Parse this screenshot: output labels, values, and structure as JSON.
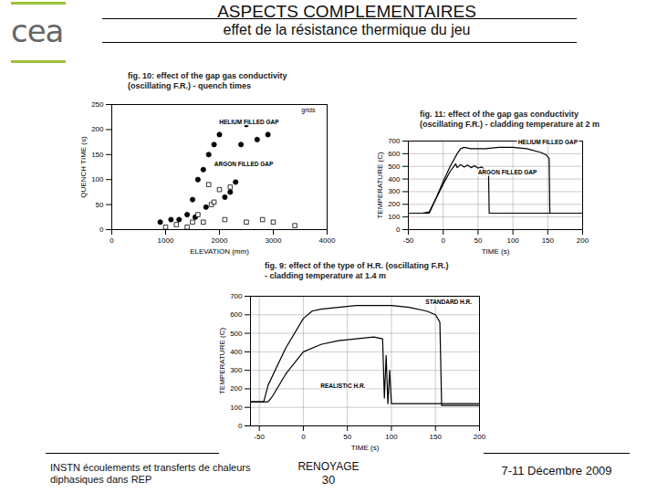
{
  "slide": {
    "logo": "cea",
    "title": "ASPECTS COMPLEMENTAIRES",
    "subtitle": "effet de la résistance thermique du jeu",
    "footer_left": "INSTN écoulements et transferts de chaleurs diphasiques dans REP",
    "footer_center": "RENOYAGE",
    "page": "30",
    "footer_right": "7-11 Décembre 2009"
  },
  "chart_data": [
    {
      "type": "scatter",
      "title": "fig. 10: effect of the gap gas conductivity",
      "subtitle": "(oscillating F.R.) - quench times",
      "x_label": "ELEVATION (mm)",
      "y_label": "QUENCH TIME (s)",
      "xlim": [
        0,
        4000
      ],
      "xticks": [
        0,
        1000,
        2000,
        3000,
        4000
      ],
      "ylim": [
        0,
        250
      ],
      "yticks": [
        0,
        50,
        100,
        150,
        200,
        250
      ],
      "grid": false,
      "annotations": [
        {
          "text": "grids",
          "x": 3650,
          "y": 238
        }
      ],
      "series": [
        {
          "name": "HELIUM FILLED GAP",
          "color": "#000000",
          "marker": "filled_circle",
          "label_x": 2550,
          "label_y": 215,
          "x": [
            900,
            1100,
            1250,
            1400,
            1500,
            1550,
            1600,
            1700,
            1750,
            1800,
            1900,
            2000,
            2100,
            2200,
            2300,
            2400,
            2500,
            2700,
            2900
          ],
          "values": [
            15,
            20,
            20,
            30,
            60,
            25,
            100,
            120,
            45,
            150,
            170,
            190,
            65,
            75,
            95,
            170,
            210,
            180,
            190
          ]
        },
        {
          "name": "ARGON FILLED GAP",
          "color": "#000000",
          "marker": "open_square",
          "label_x": 2450,
          "label_y": 130,
          "x": [
            1000,
            1200,
            1400,
            1500,
            1600,
            1700,
            1800,
            1850,
            1900,
            2000,
            2100,
            2200,
            2500,
            2800,
            3000,
            3400
          ],
          "values": [
            5,
            10,
            5,
            15,
            30,
            15,
            90,
            50,
            55,
            80,
            20,
            85,
            15,
            20,
            15,
            8
          ]
        }
      ]
    },
    {
      "type": "line",
      "title": "fig. 11: effect of the gap gas conductivity",
      "subtitle": "(oscillating F.R.) - cladding temperature at 2 m",
      "x_label": "TIME (s)",
      "y_label": "TEMPERATURE (C)",
      "xlim": [
        -50,
        200
      ],
      "xticks": [
        -50,
        0,
        50,
        100,
        150,
        200
      ],
      "ylim": [
        0,
        700
      ],
      "yticks": [
        0,
        100,
        200,
        300,
        400,
        500,
        600,
        700
      ],
      "grid": true,
      "series": [
        {
          "name": "HELIUM FILLED GAP",
          "color": "#000000",
          "line_style": "solid",
          "label_x": 150,
          "label_y": 690,
          "x": [
            -50,
            -30,
            -20,
            -10,
            0,
            10,
            20,
            25,
            30,
            40,
            60,
            80,
            100,
            120,
            140,
            148,
            152,
            153,
            200
          ],
          "values": [
            130,
            130,
            130,
            250,
            380,
            500,
            600,
            640,
            650,
            640,
            640,
            650,
            650,
            640,
            610,
            590,
            560,
            130,
            130
          ]
        },
        {
          "name": "ARGON FILLED GAP",
          "color": "#000000",
          "line_style": "solid",
          "label_x": 92,
          "label_y": 455,
          "x": [
            -50,
            -30,
            -20,
            -10,
            0,
            10,
            18,
            20,
            25,
            30,
            35,
            40,
            45,
            50,
            55,
            60,
            65,
            66,
            200
          ],
          "values": [
            130,
            130,
            140,
            250,
            360,
            460,
            520,
            490,
            515,
            495,
            510,
            490,
            505,
            485,
            495,
            475,
            470,
            130,
            130
          ]
        }
      ]
    },
    {
      "type": "line",
      "title": "fig. 9: effect of the type of H.R. (oscillating F.R.)",
      "subtitle": "- cladding temperature at 1.4 m",
      "x_label": "TIME (s)",
      "y_label": "TEMPERATURE (C)",
      "xlim": [
        -60,
        200
      ],
      "xticks": [
        -50,
        0,
        50,
        100,
        150,
        200
      ],
      "ylim": [
        0,
        700
      ],
      "yticks": [
        0,
        100,
        200,
        300,
        400,
        500,
        600,
        700
      ],
      "grid": true,
      "series": [
        {
          "name": "STANDARD H.R.",
          "color": "#000000",
          "line_style": "solid",
          "label_x": 165,
          "label_y": 670,
          "x": [
            -60,
            -45,
            -40,
            -20,
            0,
            10,
            20,
            40,
            60,
            80,
            100,
            120,
            140,
            150,
            155,
            157,
            200
          ],
          "values": [
            130,
            130,
            220,
            420,
            580,
            620,
            630,
            640,
            650,
            650,
            650,
            640,
            620,
            600,
            560,
            110,
            110
          ]
        },
        {
          "name": "REALISTIC H.R.",
          "color": "#000000",
          "line_style": "solid",
          "label_x": 45,
          "label_y": 215,
          "x": [
            -60,
            -40,
            -35,
            -20,
            0,
            20,
            40,
            60,
            80,
            90,
            92,
            94,
            96,
            98,
            100,
            102,
            200
          ],
          "values": [
            130,
            130,
            160,
            280,
            400,
            440,
            460,
            470,
            480,
            470,
            150,
            380,
            120,
            300,
            120,
            120,
            120
          ]
        }
      ]
    }
  ]
}
